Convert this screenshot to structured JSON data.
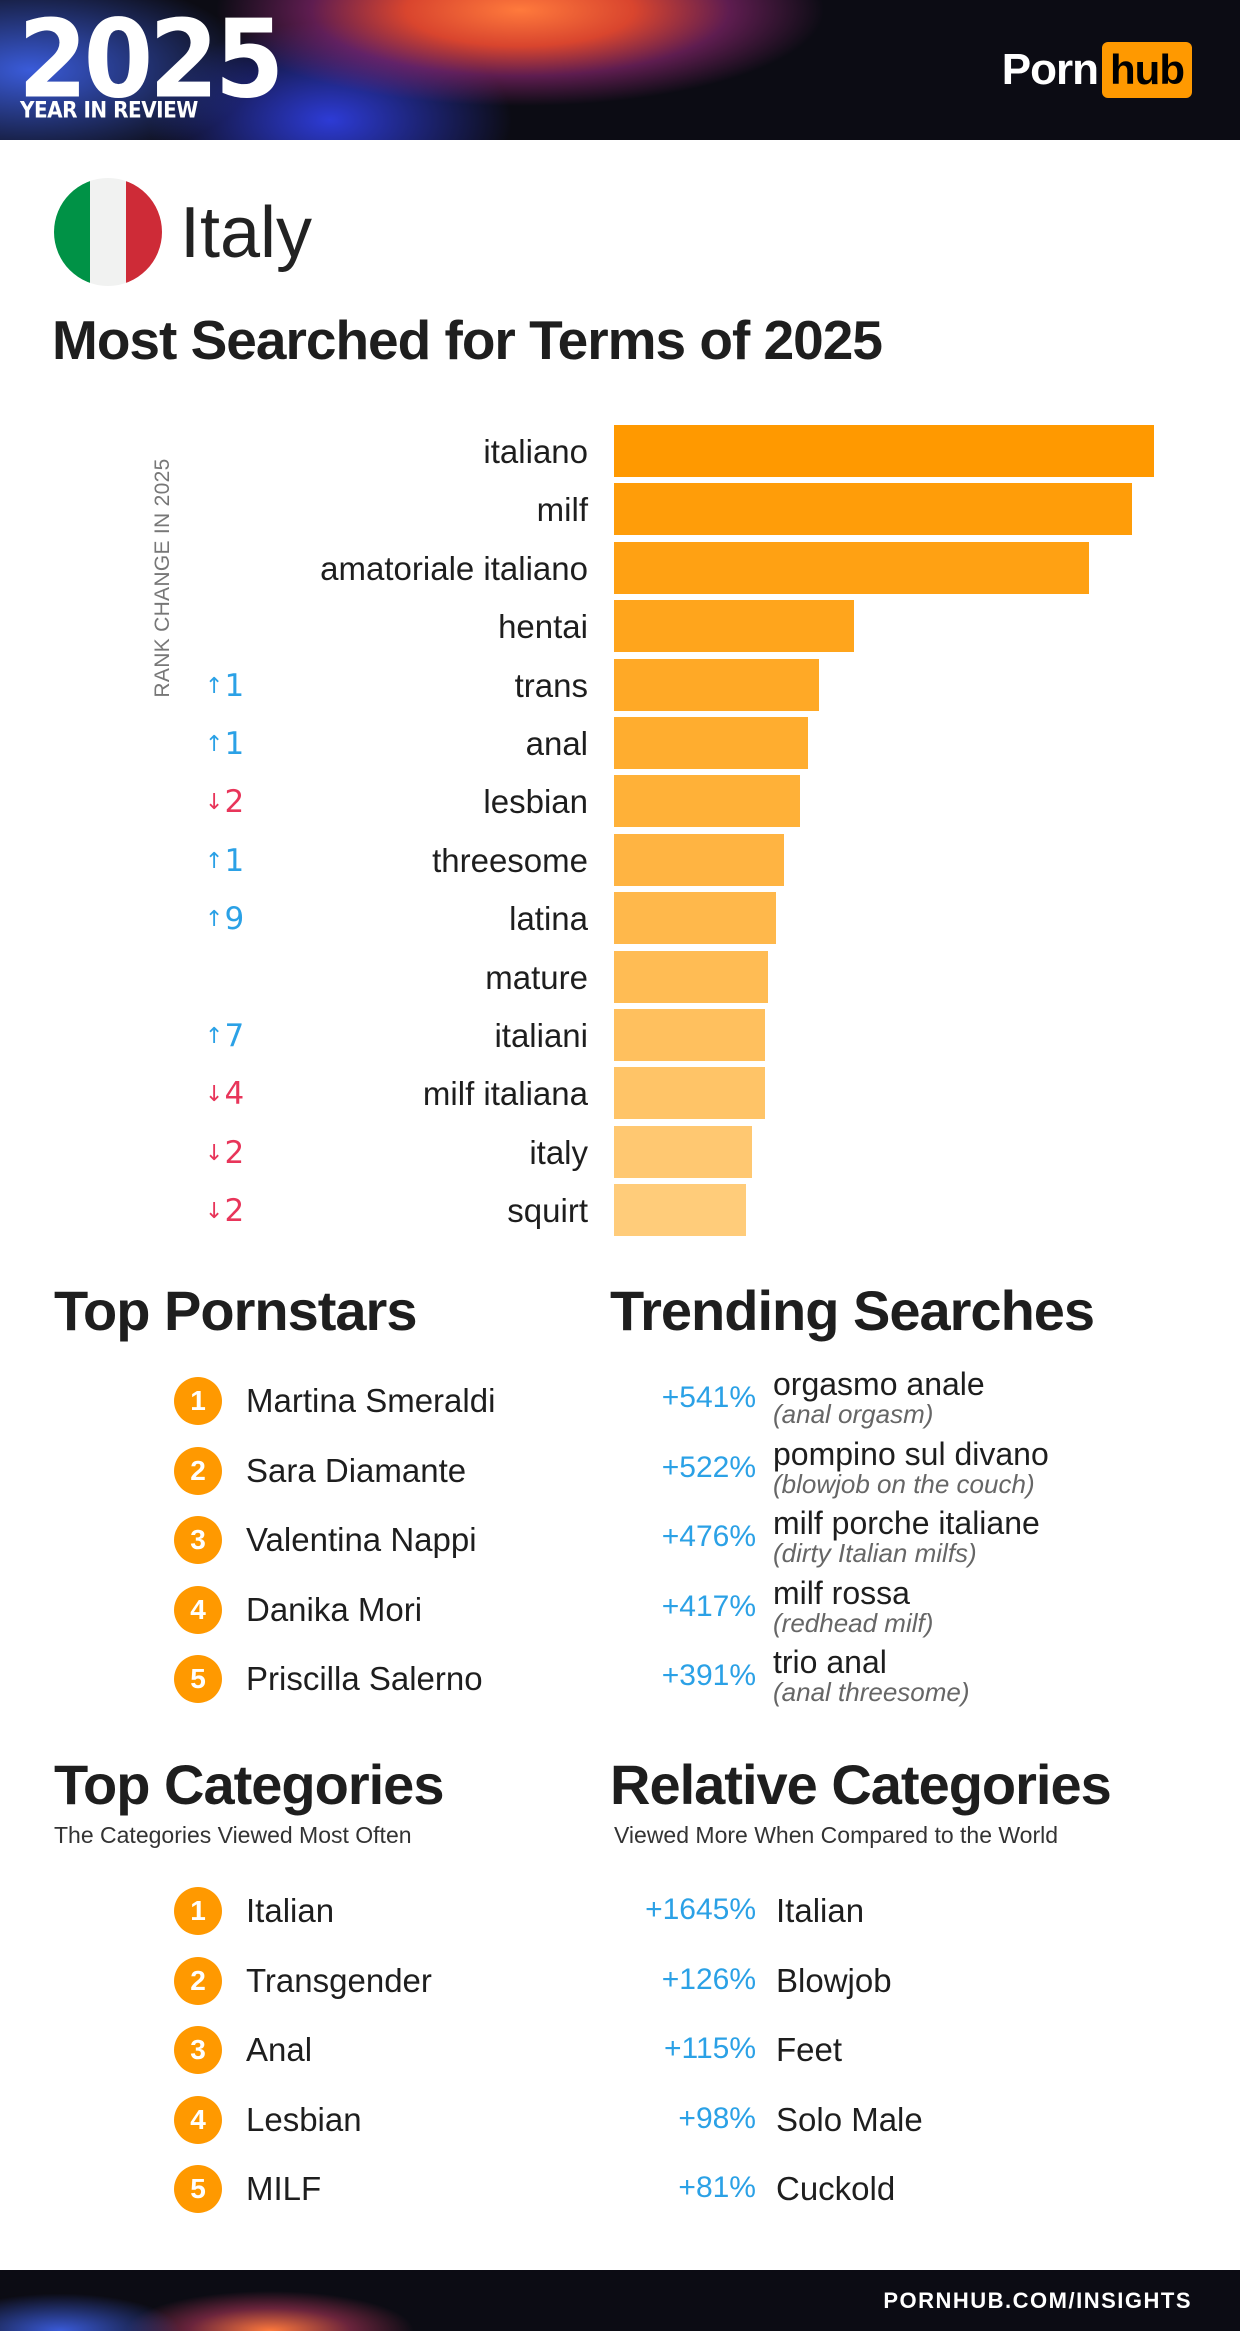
{
  "header": {
    "year": "2025",
    "subtitle": "YEAR IN REVIEW",
    "brand_left": "Porn",
    "brand_right": "hub"
  },
  "country": {
    "name": "Italy",
    "flag_colors": [
      "#009246",
      "#f1f2f1",
      "#ce2b37"
    ]
  },
  "main_title": "Most Searched for Terms of 2025",
  "chart_data": {
    "type": "bar",
    "orientation": "horizontal",
    "axis_label": "RANK CHANGE IN 2025",
    "categories": [
      "italiano",
      "milf",
      "amatoriale italiano",
      "hentai",
      "trans",
      "anal",
      "lesbian",
      "threesome",
      "latina",
      "mature",
      "italiani",
      "milf italiana",
      "italy",
      "squirt"
    ],
    "values": [
      100,
      96,
      88,
      44.5,
      38,
      36,
      34.5,
      31.5,
      30,
      28.5,
      28,
      28,
      25.5,
      24.5
    ],
    "rank_change": [
      "",
      "",
      "",
      "",
      "↑1",
      "↑1",
      "↓2",
      "↑1",
      "↑9",
      "",
      "↑7",
      "↓4",
      "↓2",
      "↓2"
    ],
    "bar_color_start": "#ff9900",
    "bar_color_end": "#ffcc7a"
  },
  "top_pornstars": {
    "title": "Top Pornstars",
    "items": [
      {
        "rank": "1",
        "name": "Martina Smeraldi"
      },
      {
        "rank": "2",
        "name": "Sara Diamante"
      },
      {
        "rank": "3",
        "name": "Valentina Nappi"
      },
      {
        "rank": "4",
        "name": "Danika Mori"
      },
      {
        "rank": "5",
        "name": "Priscilla Salerno"
      }
    ]
  },
  "trending": {
    "title": "Trending Searches",
    "items": [
      {
        "pct": "+541%",
        "term": "orgasmo anale",
        "translation": "(anal orgasm)"
      },
      {
        "pct": "+522%",
        "term": "pompino sul divano",
        "translation": "(blowjob on the couch)"
      },
      {
        "pct": "+476%",
        "term": "milf porche italiane",
        "translation": "(dirty Italian milfs)"
      },
      {
        "pct": "+417%",
        "term": "milf rossa",
        "translation": "(redhead milf)"
      },
      {
        "pct": "+391%",
        "term": "trio anal",
        "translation": "(anal threesome)"
      }
    ]
  },
  "top_categories": {
    "title": "Top Categories",
    "subtitle": "The Categories Viewed Most Often",
    "items": [
      {
        "rank": "1",
        "name": "Italian"
      },
      {
        "rank": "2",
        "name": "Transgender"
      },
      {
        "rank": "3",
        "name": "Anal"
      },
      {
        "rank": "4",
        "name": "Lesbian"
      },
      {
        "rank": "5",
        "name": "MILF"
      }
    ]
  },
  "relative_categories": {
    "title": "Relative Categories",
    "subtitle": "Viewed More When Compared to the World",
    "items": [
      {
        "pct": "+1645%",
        "name": "Italian"
      },
      {
        "pct": "+126%",
        "name": "Blowjob"
      },
      {
        "pct": "+115%",
        "name": "Feet"
      },
      {
        "pct": "+98%",
        "name": "Solo Male"
      },
      {
        "pct": "+81%",
        "name": "Cuckold"
      }
    ]
  },
  "footer": {
    "url": "PORNHUB.COM/INSIGHTS"
  },
  "colors": {
    "accent": "#ff9900",
    "up": "#2ba1e6",
    "down": "#e8355a"
  }
}
